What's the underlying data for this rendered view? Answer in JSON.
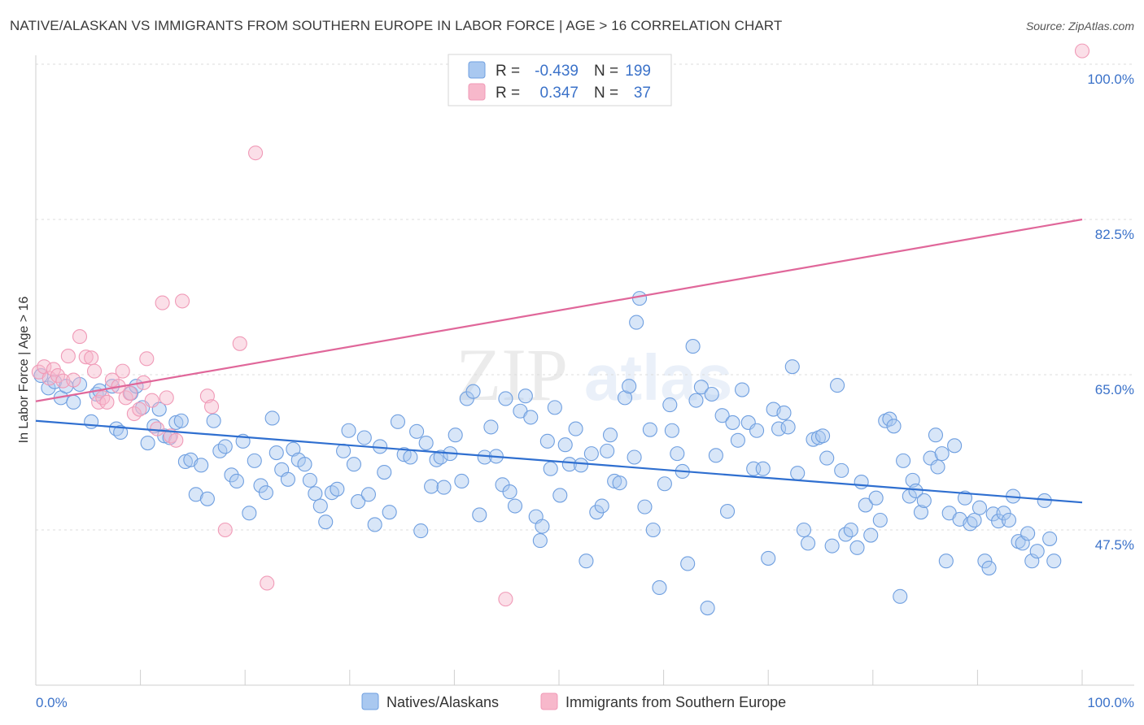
{
  "header": {
    "title": "NATIVE/ALASKAN VS IMMIGRANTS FROM SOUTHERN EUROPE IN LABOR FORCE | AGE > 16 CORRELATION CHART",
    "source": "Source: ZipAtlas.com"
  },
  "watermark": {
    "zip": "ZIP",
    "atlas": "atlas"
  },
  "legend": {
    "rows": [
      {
        "r_label": "R =",
        "r_value": "-0.439",
        "n_label": "N =",
        "n_value": "199",
        "color": "#a9c8f0"
      },
      {
        "r_label": "R =",
        "r_value": "0.347",
        "n_label": "N =",
        "n_value": "37",
        "color": "#f7b8cb"
      }
    ]
  },
  "bottom_legend": {
    "items": [
      {
        "label": "Natives/Alaskans",
        "color": "#a9c8f0"
      },
      {
        "label": "Immigrants from Southern Europe",
        "color": "#f7b8cb"
      }
    ]
  },
  "chart_data": {
    "type": "scatter",
    "title": "NATIVE/ALASKAN VS IMMIGRANTS FROM SOUTHERN EUROPE IN LABOR FORCE | AGE > 16 CORRELATION CHART",
    "xlabel": "",
    "ylabel": "In Labor Force | Age > 16",
    "xlim": [
      0,
      100
    ],
    "ylim": [
      30,
      101.5
    ],
    "x_tick_labels": [
      "0.0%",
      "100.0%"
    ],
    "y_ticks": [
      47.5,
      65.0,
      82.5,
      100.0
    ],
    "y_tick_labels": [
      "47.5%",
      "65.0%",
      "82.5%",
      "100.0%"
    ],
    "grid": "horizontal dashed",
    "legend_position": "top-center",
    "series": [
      {
        "name": "Natives/Alaskans",
        "color": "#6f9fe0",
        "trend": {
          "x": [
            0,
            100
          ],
          "y": [
            59.8,
            50.6
          ]
        },
        "points": [
          [
            0.5,
            64.9
          ],
          [
            1.2,
            63.5
          ],
          [
            1.8,
            64.2
          ],
          [
            2.4,
            62.4
          ],
          [
            2.9,
            63.7
          ],
          [
            3.6,
            61.9
          ],
          [
            4.2,
            63.9
          ],
          [
            5.3,
            59.7
          ],
          [
            5.8,
            62.8
          ],
          [
            6.1,
            63.2
          ],
          [
            7.3,
            63.7
          ],
          [
            7.7,
            58.9
          ],
          [
            8.1,
            58.5
          ],
          [
            9.1,
            62.9
          ],
          [
            9.6,
            63.7
          ],
          [
            10.2,
            61.3
          ],
          [
            10.7,
            57.3
          ],
          [
            11.3,
            59.2
          ],
          [
            11.8,
            61.1
          ],
          [
            12.3,
            58.1
          ],
          [
            12.8,
            57.9
          ],
          [
            13.4,
            59.6
          ],
          [
            13.9,
            59.8
          ],
          [
            14.3,
            55.2
          ],
          [
            14.8,
            55.4
          ],
          [
            15.3,
            51.5
          ],
          [
            15.8,
            54.8
          ],
          [
            16.4,
            51.0
          ],
          [
            17.0,
            59.8
          ],
          [
            17.6,
            56.4
          ],
          [
            18.1,
            56.9
          ],
          [
            18.7,
            53.7
          ],
          [
            19.2,
            53.0
          ],
          [
            19.8,
            57.5
          ],
          [
            20.4,
            49.4
          ],
          [
            20.9,
            55.3
          ],
          [
            21.5,
            52.5
          ],
          [
            22.0,
            51.7
          ],
          [
            22.6,
            60.1
          ],
          [
            23.0,
            56.2
          ],
          [
            23.5,
            54.3
          ],
          [
            24.1,
            53.2
          ],
          [
            24.6,
            56.6
          ],
          [
            25.1,
            55.4
          ],
          [
            25.7,
            54.9
          ],
          [
            26.2,
            53.1
          ],
          [
            26.7,
            51.6
          ],
          [
            27.2,
            50.2
          ],
          [
            27.7,
            48.4
          ],
          [
            28.3,
            51.7
          ],
          [
            28.8,
            52.1
          ],
          [
            29.4,
            56.4
          ],
          [
            29.9,
            58.7
          ],
          [
            30.4,
            54.9
          ],
          [
            30.8,
            50.7
          ],
          [
            31.4,
            57.9
          ],
          [
            31.8,
            51.5
          ],
          [
            32.4,
            48.1
          ],
          [
            32.9,
            56.9
          ],
          [
            33.3,
            54.0
          ],
          [
            33.8,
            49.5
          ],
          [
            34.6,
            59.7
          ],
          [
            35.2,
            56.0
          ],
          [
            35.8,
            55.7
          ],
          [
            36.4,
            58.6
          ],
          [
            36.8,
            47.4
          ],
          [
            37.3,
            57.3
          ],
          [
            37.8,
            52.4
          ],
          [
            38.3,
            55.4
          ],
          [
            38.7,
            55.7
          ],
          [
            39.0,
            52.3
          ],
          [
            39.6,
            56.1
          ],
          [
            40.1,
            58.2
          ],
          [
            40.7,
            53.0
          ],
          [
            41.2,
            62.3
          ],
          [
            41.8,
            63.1
          ],
          [
            42.4,
            49.2
          ],
          [
            42.9,
            55.7
          ],
          [
            43.5,
            59.1
          ],
          [
            44.0,
            55.8
          ],
          [
            44.6,
            52.6
          ],
          [
            44.9,
            62.3
          ],
          [
            45.3,
            51.8
          ],
          [
            45.8,
            50.2
          ],
          [
            46.3,
            60.9
          ],
          [
            46.8,
            62.6
          ],
          [
            47.3,
            60.2
          ],
          [
            47.8,
            49.0
          ],
          [
            48.2,
            46.3
          ],
          [
            48.4,
            47.9
          ],
          [
            48.9,
            57.5
          ],
          [
            49.2,
            54.4
          ],
          [
            49.6,
            61.3
          ],
          [
            50.1,
            51.4
          ],
          [
            50.6,
            57.1
          ],
          [
            51.0,
            54.9
          ],
          [
            51.6,
            58.9
          ],
          [
            52.1,
            54.8
          ],
          [
            52.6,
            44.0
          ],
          [
            53.1,
            56.1
          ],
          [
            53.6,
            49.5
          ],
          [
            54.1,
            50.2
          ],
          [
            54.6,
            56.4
          ],
          [
            54.9,
            58.2
          ],
          [
            55.3,
            53.0
          ],
          [
            55.8,
            52.8
          ],
          [
            56.3,
            62.4
          ],
          [
            56.7,
            63.7
          ],
          [
            57.2,
            55.7
          ],
          [
            57.7,
            73.6
          ],
          [
            57.4,
            70.9
          ],
          [
            58.2,
            50.1
          ],
          [
            58.7,
            58.8
          ],
          [
            59.0,
            47.5
          ],
          [
            59.6,
            41.0
          ],
          [
            60.1,
            52.7
          ],
          [
            60.6,
            61.6
          ],
          [
            60.8,
            58.7
          ],
          [
            61.3,
            56.1
          ],
          [
            61.8,
            54.1
          ],
          [
            62.3,
            43.7
          ],
          [
            62.8,
            68.2
          ],
          [
            63.1,
            62.1
          ],
          [
            63.6,
            63.6
          ],
          [
            64.2,
            38.7
          ],
          [
            64.6,
            62.8
          ],
          [
            65.0,
            55.9
          ],
          [
            65.6,
            60.4
          ],
          [
            66.1,
            49.6
          ],
          [
            66.6,
            59.6
          ],
          [
            67.1,
            57.6
          ],
          [
            67.5,
            63.3
          ],
          [
            68.1,
            59.6
          ],
          [
            68.6,
            54.4
          ],
          [
            68.9,
            58.7
          ],
          [
            69.5,
            54.4
          ],
          [
            70.0,
            44.3
          ],
          [
            70.5,
            61.1
          ],
          [
            71.0,
            58.9
          ],
          [
            71.5,
            60.7
          ],
          [
            71.9,
            59.1
          ],
          [
            72.3,
            65.9
          ],
          [
            72.8,
            53.9
          ],
          [
            73.4,
            47.5
          ],
          [
            73.8,
            46.0
          ],
          [
            74.3,
            57.7
          ],
          [
            74.8,
            57.9
          ],
          [
            75.2,
            58.1
          ],
          [
            75.6,
            55.6
          ],
          [
            76.1,
            45.7
          ],
          [
            76.6,
            63.8
          ],
          [
            77.0,
            54.2
          ],
          [
            77.4,
            47.0
          ],
          [
            77.9,
            47.5
          ],
          [
            78.5,
            45.5
          ],
          [
            78.9,
            52.9
          ],
          [
            79.3,
            50.3
          ],
          [
            79.8,
            46.9
          ],
          [
            80.3,
            51.1
          ],
          [
            80.7,
            48.6
          ],
          [
            81.2,
            59.8
          ],
          [
            81.6,
            60.0
          ],
          [
            82.0,
            59.2
          ],
          [
            82.6,
            40.0
          ],
          [
            82.9,
            55.3
          ],
          [
            83.5,
            51.3
          ],
          [
            83.8,
            53.1
          ],
          [
            84.1,
            51.9
          ],
          [
            84.6,
            49.5
          ],
          [
            84.9,
            50.8
          ],
          [
            85.5,
            55.6
          ],
          [
            86.0,
            58.2
          ],
          [
            86.2,
            54.6
          ],
          [
            86.6,
            56.1
          ],
          [
            87.0,
            44.0
          ],
          [
            87.3,
            49.4
          ],
          [
            87.8,
            57.0
          ],
          [
            88.3,
            48.7
          ],
          [
            88.8,
            51.1
          ],
          [
            89.3,
            48.2
          ],
          [
            89.7,
            48.6
          ],
          [
            90.2,
            50.0
          ],
          [
            90.7,
            44.0
          ],
          [
            91.1,
            43.2
          ],
          [
            91.5,
            49.3
          ],
          [
            92.0,
            48.5
          ],
          [
            92.5,
            49.4
          ],
          [
            93.0,
            48.6
          ],
          [
            93.4,
            51.3
          ],
          [
            93.9,
            46.2
          ],
          [
            94.3,
            46.0
          ],
          [
            94.8,
            47.1
          ],
          [
            95.2,
            44.0
          ],
          [
            95.7,
            45.1
          ],
          [
            96.4,
            50.8
          ],
          [
            96.9,
            46.5
          ],
          [
            97.3,
            44.0
          ]
        ]
      },
      {
        "name": "Immigrants from Southern Europe",
        "color": "#f09ab7",
        "trend": {
          "x": [
            0,
            100
          ],
          "y": [
            62.0,
            82.5
          ]
        },
        "points": [
          [
            0.3,
            65.3
          ],
          [
            0.8,
            65.9
          ],
          [
            1.3,
            64.6
          ],
          [
            1.7,
            65.6
          ],
          [
            2.1,
            64.9
          ],
          [
            2.6,
            64.3
          ],
          [
            3.1,
            67.1
          ],
          [
            3.6,
            64.4
          ],
          [
            4.2,
            69.3
          ],
          [
            4.8,
            67.0
          ],
          [
            5.3,
            66.9
          ],
          [
            5.6,
            65.4
          ],
          [
            6.0,
            61.9
          ],
          [
            6.4,
            62.4
          ],
          [
            6.8,
            61.9
          ],
          [
            7.3,
            64.4
          ],
          [
            7.9,
            63.7
          ],
          [
            8.3,
            65.4
          ],
          [
            8.6,
            62.4
          ],
          [
            9.0,
            62.9
          ],
          [
            9.4,
            60.6
          ],
          [
            9.9,
            61.1
          ],
          [
            10.3,
            64.1
          ],
          [
            10.6,
            66.8
          ],
          [
            11.1,
            62.1
          ],
          [
            11.6,
            58.9
          ],
          [
            12.1,
            73.1
          ],
          [
            12.5,
            62.4
          ],
          [
            12.9,
            58.1
          ],
          [
            13.4,
            57.6
          ],
          [
            14.0,
            73.3
          ],
          [
            16.4,
            62.6
          ],
          [
            16.8,
            61.4
          ],
          [
            18.1,
            47.5
          ],
          [
            19.5,
            68.5
          ],
          [
            21.0,
            90.0
          ],
          [
            22.1,
            41.5
          ],
          [
            44.9,
            39.7
          ],
          [
            100.0,
            101.5
          ]
        ]
      }
    ]
  }
}
